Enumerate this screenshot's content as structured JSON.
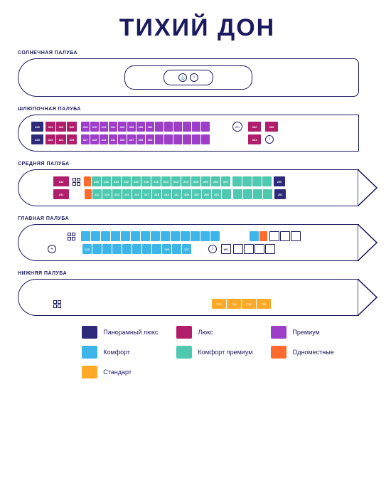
{
  "title": "ТИХИЙ ДОН",
  "colors": {
    "outline": "#1a1a5e",
    "panoramic_lux": "#2d2a7a",
    "lux": "#b01e6b",
    "premium": "#9d3ec9",
    "comfort": "#3eb5e8",
    "comfort_premium": "#4ec9b0",
    "single": "#ff6b2e",
    "standard": "#ffa929",
    "white": "#ffffff"
  },
  "decks": {
    "sun": {
      "label": "СОЛНЕЧНАЯ ПАЛУБА"
    },
    "boat": {
      "label": "ШЛЮПОЧНАЯ ПАЛУБА",
      "row_top": [
        {
          "c": "panoramic_lux",
          "w": 17,
          "n": "326"
        },
        {
          "gap": 1
        },
        {
          "c": "lux",
          "w": 14,
          "n": "324"
        },
        {
          "c": "lux",
          "w": 14,
          "n": "322"
        },
        {
          "c": "lux",
          "w": 14,
          "n": "320"
        },
        {
          "gap": 4
        },
        {
          "c": "premium",
          "w": 12,
          "n": "318"
        },
        {
          "c": "premium",
          "w": 12,
          "n": "316"
        },
        {
          "c": "premium",
          "w": 12,
          "n": "314"
        },
        {
          "c": "premium",
          "w": 12,
          "n": "312"
        },
        {
          "c": "premium",
          "w": 12,
          "n": "310"
        },
        {
          "c": "premium",
          "w": 12,
          "n": "308"
        },
        {
          "c": "premium",
          "w": 12,
          "n": "306"
        },
        {
          "c": "premium",
          "w": 12,
          "n": "304"
        },
        {
          "c": "premium",
          "w": 12,
          "n": ""
        },
        {
          "c": "premium",
          "w": 12,
          "n": ""
        },
        {
          "c": "premium",
          "w": 12,
          "n": ""
        },
        {
          "c": "premium",
          "w": 12,
          "n": ""
        },
        {
          "c": "premium",
          "w": 12,
          "n": ""
        },
        {
          "c": "premium",
          "w": 12,
          "n": ""
        },
        {
          "gap": 30
        },
        {
          "wc": true
        },
        {
          "gap": 6
        },
        {
          "c": "lux",
          "w": 18,
          "n": "302"
        },
        {
          "gap": 4
        },
        {
          "c": "lux",
          "w": 18,
          "n": "300"
        }
      ],
      "row_bot": [
        {
          "c": "panoramic_lux",
          "w": 17,
          "n": "325"
        },
        {
          "gap": 1
        },
        {
          "c": "lux",
          "w": 14,
          "n": "323"
        },
        {
          "c": "lux",
          "w": 14,
          "n": "321"
        },
        {
          "c": "lux",
          "w": 14,
          "n": "319"
        },
        {
          "gap": 4
        },
        {
          "c": "premium",
          "w": 12,
          "n": "317"
        },
        {
          "c": "premium",
          "w": 12,
          "n": "315"
        },
        {
          "c": "premium",
          "w": 12,
          "n": "313"
        },
        {
          "c": "premium",
          "w": 12,
          "n": "311"
        },
        {
          "c": "premium",
          "w": 12,
          "n": "309"
        },
        {
          "c": "premium",
          "w": 12,
          "n": "307"
        },
        {
          "c": "premium",
          "w": 12,
          "n": "305"
        },
        {
          "c": "premium",
          "w": 12,
          "n": "303"
        },
        {
          "c": "premium",
          "w": 12,
          "n": ""
        },
        {
          "c": "premium",
          "w": 12,
          "n": ""
        },
        {
          "c": "premium",
          "w": 12,
          "n": ""
        },
        {
          "c": "premium",
          "w": 12,
          "n": ""
        },
        {
          "c": "premium",
          "w": 12,
          "n": ""
        },
        {
          "c": "premium",
          "w": 12,
          "n": ""
        },
        {
          "gap": 52
        },
        {
          "c": "lux",
          "w": 18,
          "n": "301"
        },
        {
          "gap": 4
        },
        {
          "iconcirc": "♀"
        }
      ]
    },
    "mid": {
      "label": "СРЕДНЯЯ ПАЛУБА",
      "row_top": [
        {
          "gap": 30
        },
        {
          "c": "lux",
          "w": 22,
          "n": "232"
        },
        {
          "gap": 3
        },
        {
          "stairs": true
        },
        {
          "gap": 3
        },
        {
          "c": "single",
          "w": 10,
          "n": ""
        },
        {
          "c": "comfort_premium",
          "w": 13,
          "n": "228"
        },
        {
          "c": "comfort_premium",
          "w": 13,
          "n": "226"
        },
        {
          "c": "comfort_premium",
          "w": 13,
          "n": "224"
        },
        {
          "c": "comfort_premium",
          "w": 13,
          "n": "222"
        },
        {
          "c": "comfort_premium",
          "w": 13,
          "n": "220"
        },
        {
          "c": "comfort_premium",
          "w": 13,
          "n": "218"
        },
        {
          "c": "comfort_premium",
          "w": 13,
          "n": "216"
        },
        {
          "c": "comfort_premium",
          "w": 13,
          "n": "214"
        },
        {
          "c": "comfort_premium",
          "w": 13,
          "n": "212"
        },
        {
          "c": "comfort_premium",
          "w": 13,
          "n": "210"
        },
        {
          "c": "comfort_premium",
          "w": 13,
          "n": "208"
        },
        {
          "c": "comfort_premium",
          "w": 13,
          "n": "206"
        },
        {
          "c": "comfort_premium",
          "w": 13,
          "n": "204"
        },
        {
          "c": "comfort_premium",
          "w": 13,
          "n": "202"
        },
        {
          "gap": 1
        },
        {
          "c": "comfort_premium",
          "w": 13,
          "n": ""
        },
        {
          "c": "comfort_premium",
          "w": 13,
          "n": ""
        },
        {
          "c": "comfort_premium",
          "w": 13,
          "n": ""
        },
        {
          "c": "comfort_premium",
          "w": 13,
          "n": ""
        },
        {
          "gap": 1
        },
        {
          "c": "panoramic_lux",
          "w": 16,
          "n": "200"
        }
      ],
      "row_bot": [
        {
          "gap": 30
        },
        {
          "c": "lux",
          "w": 22,
          "n": "231"
        },
        {
          "gap": 20
        },
        {
          "c": "single",
          "w": 10,
          "n": ""
        },
        {
          "c": "comfort_premium",
          "w": 13,
          "n": "227"
        },
        {
          "c": "comfort_premium",
          "w": 13,
          "n": "225"
        },
        {
          "c": "comfort_premium",
          "w": 13,
          "n": "223"
        },
        {
          "c": "comfort_premium",
          "w": 13,
          "n": "221"
        },
        {
          "c": "comfort_premium",
          "w": 13,
          "n": "219"
        },
        {
          "c": "comfort_premium",
          "w": 13,
          "n": "217"
        },
        {
          "c": "comfort_premium",
          "w": 13,
          "n": "215"
        },
        {
          "c": "comfort_premium",
          "w": 13,
          "n": "213"
        },
        {
          "c": "comfort_premium",
          "w": 13,
          "n": "211"
        },
        {
          "c": "comfort_premium",
          "w": 13,
          "n": "209"
        },
        {
          "c": "comfort_premium",
          "w": 13,
          "n": "207"
        },
        {
          "c": "comfort_premium",
          "w": 13,
          "n": "205"
        },
        {
          "c": "comfort_premium",
          "w": 13,
          "n": "203"
        },
        {
          "c": "comfort_premium",
          "w": 13,
          "n": ""
        },
        {
          "gap": 1
        },
        {
          "c": "comfort_premium",
          "w": 13,
          "n": ""
        },
        {
          "c": "comfort_premium",
          "w": 13,
          "n": ""
        },
        {
          "c": "comfort_premium",
          "w": 13,
          "n": ""
        },
        {
          "c": "comfort_premium",
          "w": 13,
          "n": ""
        },
        {
          "gap": 1
        },
        {
          "c": "panoramic_lux",
          "w": 16,
          "n": "201"
        }
      ]
    },
    "main": {
      "label": "ГЛАВНАЯ ПАЛУБА",
      "row_top": [
        {
          "gap": 50
        },
        {
          "stairs": true
        },
        {
          "gap": 6
        },
        {
          "c": "comfort",
          "w": 13,
          "n": ""
        },
        {
          "c": "comfort",
          "w": 13,
          "n": ""
        },
        {
          "c": "comfort",
          "w": 13,
          "n": ""
        },
        {
          "c": "comfort",
          "w": 13,
          "n": ""
        },
        {
          "c": "comfort",
          "w": 13,
          "n": ""
        },
        {
          "c": "comfort",
          "w": 13,
          "n": ""
        },
        {
          "c": "comfort",
          "w": 13,
          "n": ""
        },
        {
          "c": "comfort",
          "w": 13,
          "n": ""
        },
        {
          "c": "comfort",
          "w": 13,
          "n": ""
        },
        {
          "c": "comfort",
          "w": 13,
          "n": ""
        },
        {
          "c": "comfort",
          "w": 13,
          "n": ""
        },
        {
          "c": "comfort",
          "w": 13,
          "n": ""
        },
        {
          "c": "comfort",
          "w": 13,
          "n": ""
        },
        {
          "c": "comfort",
          "w": 13,
          "n": ""
        },
        {
          "gap": 40
        },
        {
          "c": "comfort",
          "w": 13,
          "n": ""
        },
        {
          "c": "single",
          "w": 11,
          "n": ""
        },
        {
          "gap": 1
        },
        {
          "empty": true,
          "w": 14
        },
        {
          "empty": true,
          "w": 14
        },
        {
          "empty": true,
          "w": 14
        }
      ],
      "row_bot": [
        {
          "gap": 22
        },
        {
          "plus": true
        },
        {
          "gap": 35
        },
        {
          "c": "comfort",
          "w": 13,
          "n": "123"
        },
        {
          "c": "comfort",
          "w": 13,
          "n": ""
        },
        {
          "c": "comfort",
          "w": 13,
          "n": ""
        },
        {
          "c": "comfort",
          "w": 13,
          "n": ""
        },
        {
          "c": "comfort",
          "w": 13,
          "n": ""
        },
        {
          "c": "comfort",
          "w": 13,
          "n": ""
        },
        {
          "c": "comfort",
          "w": 13,
          "n": ""
        },
        {
          "c": "comfort",
          "w": 13,
          "n": ""
        },
        {
          "c": "comfort",
          "w": 13,
          "n": "109"
        },
        {
          "c": "comfort",
          "w": 13,
          "n": ""
        },
        {
          "c": "comfort",
          "w": 13,
          "n": "107"
        },
        {
          "gap": 22
        },
        {
          "iconcirc": "i"
        },
        {
          "gap": 4
        },
        {
          "wc_sq": true
        },
        {
          "gap": 1
        },
        {
          "empty": true,
          "w": 14
        },
        {
          "empty": true,
          "w": 14
        },
        {
          "empty": true,
          "w": 14
        },
        {
          "empty": true,
          "w": 14
        }
      ]
    },
    "lower": {
      "label": "НИЖНЯЯ ПАЛУБА",
      "row_top": [],
      "row_bot": [
        {
          "gap": 30
        },
        {
          "stairs": true
        },
        {
          "gap": 210
        },
        {
          "c": "standard",
          "w": 20,
          "n": "T12"
        },
        {
          "c": "standard",
          "w": 20,
          "n": "T14"
        },
        {
          "c": "standard",
          "w": 20,
          "n": "T16"
        },
        {
          "c": "standard",
          "w": 20,
          "n": "T18"
        }
      ]
    }
  },
  "legend": [
    {
      "color": "panoramic_lux",
      "label": "Панорамный люкс"
    },
    {
      "color": "lux",
      "label": "Люкс"
    },
    {
      "color": "premium",
      "label": "Премиум"
    },
    {
      "color": "comfort",
      "label": "Комфорт"
    },
    {
      "color": "comfort_premium",
      "label": "Комфорт премиум"
    },
    {
      "color": "single",
      "label": "Одноместные"
    },
    {
      "color": "standard",
      "label": "Стандарт"
    }
  ]
}
